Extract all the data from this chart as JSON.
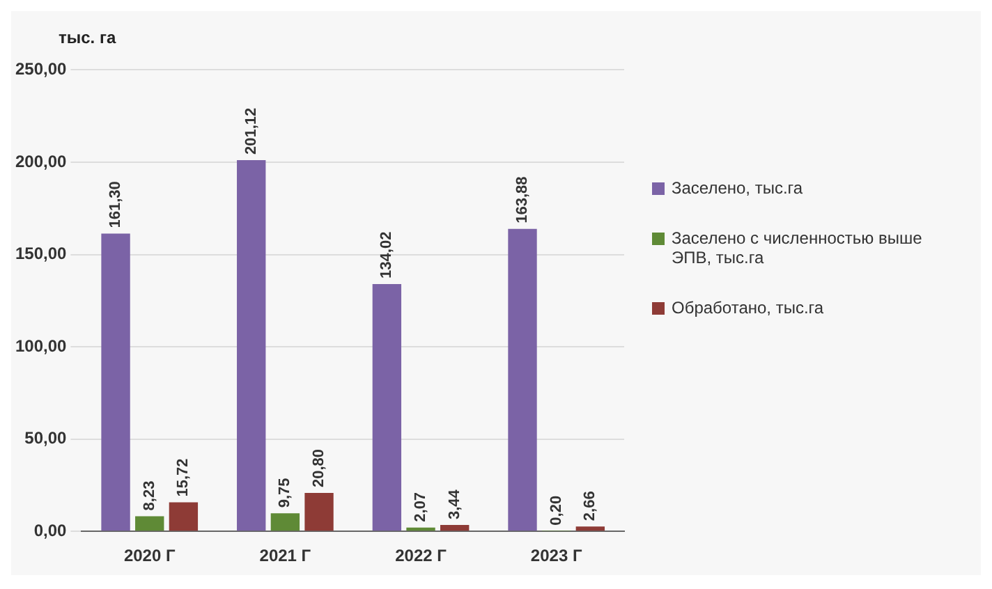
{
  "chart_data": {
    "type": "bar",
    "ylabel": "тыс. га",
    "categories": [
      "2020 Г",
      "2021 Г",
      "2022 Г",
      "2023 Г"
    ],
    "series": [
      {
        "name": "Заселено, тыс.га",
        "color": "#7b63a6",
        "values": [
          161.3,
          201.12,
          134.02,
          163.88
        ],
        "value_labels": [
          "161,30",
          "201,12",
          "134,02",
          "163,88"
        ]
      },
      {
        "name": "Заселено с численностью выше ЭПВ, тыс.га",
        "color": "#5f8a36",
        "values": [
          8.23,
          9.75,
          2.07,
          0.2
        ],
        "value_labels": [
          "8,23",
          "9,75",
          "2,07",
          "0,20"
        ]
      },
      {
        "name": "Обработано, тыс.га",
        "color": "#8e3b36",
        "values": [
          15.72,
          20.8,
          3.44,
          2.66
        ],
        "value_labels": [
          "15,72",
          "20,80",
          "3,44",
          "2,66"
        ]
      }
    ],
    "ylim": [
      0,
      250
    ],
    "yticks": [
      {
        "value": 0,
        "label": "0,00"
      },
      {
        "value": 50,
        "label": "50,00"
      },
      {
        "value": 100,
        "label": "100,00"
      },
      {
        "value": 150,
        "label": "150,00"
      },
      {
        "value": 200,
        "label": "200,00"
      },
      {
        "value": 250,
        "label": "250,00"
      }
    ],
    "grid": "y",
    "legend": "right"
  }
}
